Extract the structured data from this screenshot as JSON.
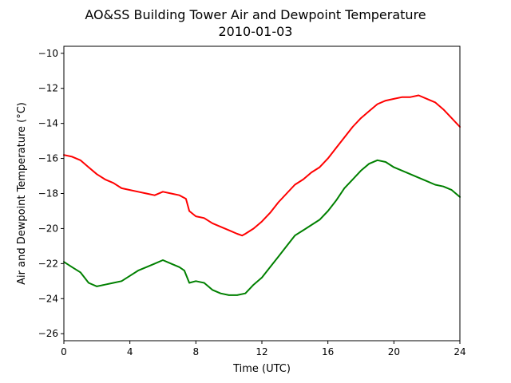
{
  "chart_data": {
    "type": "line",
    "title": "AO&SS Building Tower Air and Dewpoint Temperature",
    "subtitle": "2010-01-03",
    "xlabel": "Time (UTC)",
    "ylabel": "Air and Dewpoint Temperature (°C)",
    "xlim": [
      0,
      24
    ],
    "ylim": [
      -26.4,
      -9.6
    ],
    "x_ticks": [
      0,
      4,
      8,
      12,
      16,
      20,
      24
    ],
    "y_ticks": [
      -26,
      -24,
      -22,
      -20,
      -18,
      -16,
      -14,
      -12,
      -10
    ],
    "grid": false,
    "series": [
      {
        "color": "#ff0000",
        "x": [
          0,
          0.5,
          1,
          1.5,
          2,
          2.5,
          3,
          3.5,
          4,
          4.5,
          5,
          5.5,
          6,
          6.5,
          7,
          7.4,
          7.6,
          8,
          8.5,
          9,
          9.5,
          10,
          10.5,
          10.8,
          11,
          11.5,
          12,
          12.5,
          13,
          13.5,
          14,
          14.5,
          15,
          15.5,
          16,
          16.5,
          17,
          17.5,
          18,
          18.5,
          19,
          19.5,
          20,
          20.5,
          21,
          21.5,
          22,
          22.5,
          23,
          23.5,
          24
        ],
        "y": [
          -15.8,
          -15.9,
          -16.1,
          -16.5,
          -16.9,
          -17.2,
          -17.4,
          -17.7,
          -17.8,
          -17.9,
          -18.0,
          -18.1,
          -17.9,
          -18.0,
          -18.1,
          -18.3,
          -19.0,
          -19.3,
          -19.4,
          -19.7,
          -19.9,
          -20.1,
          -20.3,
          -20.4,
          -20.3,
          -20.0,
          -19.6,
          -19.1,
          -18.5,
          -18.0,
          -17.5,
          -17.2,
          -16.8,
          -16.5,
          -16.0,
          -15.4,
          -14.8,
          -14.2,
          -13.7,
          -13.3,
          -12.9,
          -12.7,
          -12.6,
          -12.5,
          -12.5,
          -12.4,
          -12.6,
          -12.8,
          -13.2,
          -13.7,
          -14.2
        ]
      },
      {
        "color": "#008000",
        "x": [
          0,
          0.5,
          1,
          1.5,
          2,
          2.5,
          3,
          3.5,
          4,
          4.5,
          5,
          5.5,
          6,
          6.5,
          7,
          7.3,
          7.6,
          8,
          8.5,
          9,
          9.5,
          10,
          10.5,
          11,
          11.5,
          12,
          12.5,
          13,
          13.5,
          14,
          14.5,
          15,
          15.5,
          16,
          16.5,
          17,
          17.5,
          18,
          18.5,
          19,
          19.5,
          20,
          20.5,
          21,
          21.5,
          22,
          22.5,
          23,
          23.5,
          24
        ],
        "y": [
          -21.9,
          -22.2,
          -22.5,
          -23.1,
          -23.3,
          -23.2,
          -23.1,
          -23.0,
          -22.7,
          -22.4,
          -22.2,
          -22.0,
          -21.8,
          -22.0,
          -22.2,
          -22.4,
          -23.1,
          -23.0,
          -23.1,
          -23.5,
          -23.7,
          -23.8,
          -23.8,
          -23.7,
          -23.2,
          -22.8,
          -22.2,
          -21.6,
          -21.0,
          -20.4,
          -20.1,
          -19.8,
          -19.5,
          -19.0,
          -18.4,
          -17.7,
          -17.2,
          -16.7,
          -16.3,
          -16.1,
          -16.2,
          -16.5,
          -16.7,
          -16.9,
          -17.1,
          -17.3,
          -17.5,
          -17.6,
          -17.8,
          -18.2
        ]
      }
    ]
  }
}
